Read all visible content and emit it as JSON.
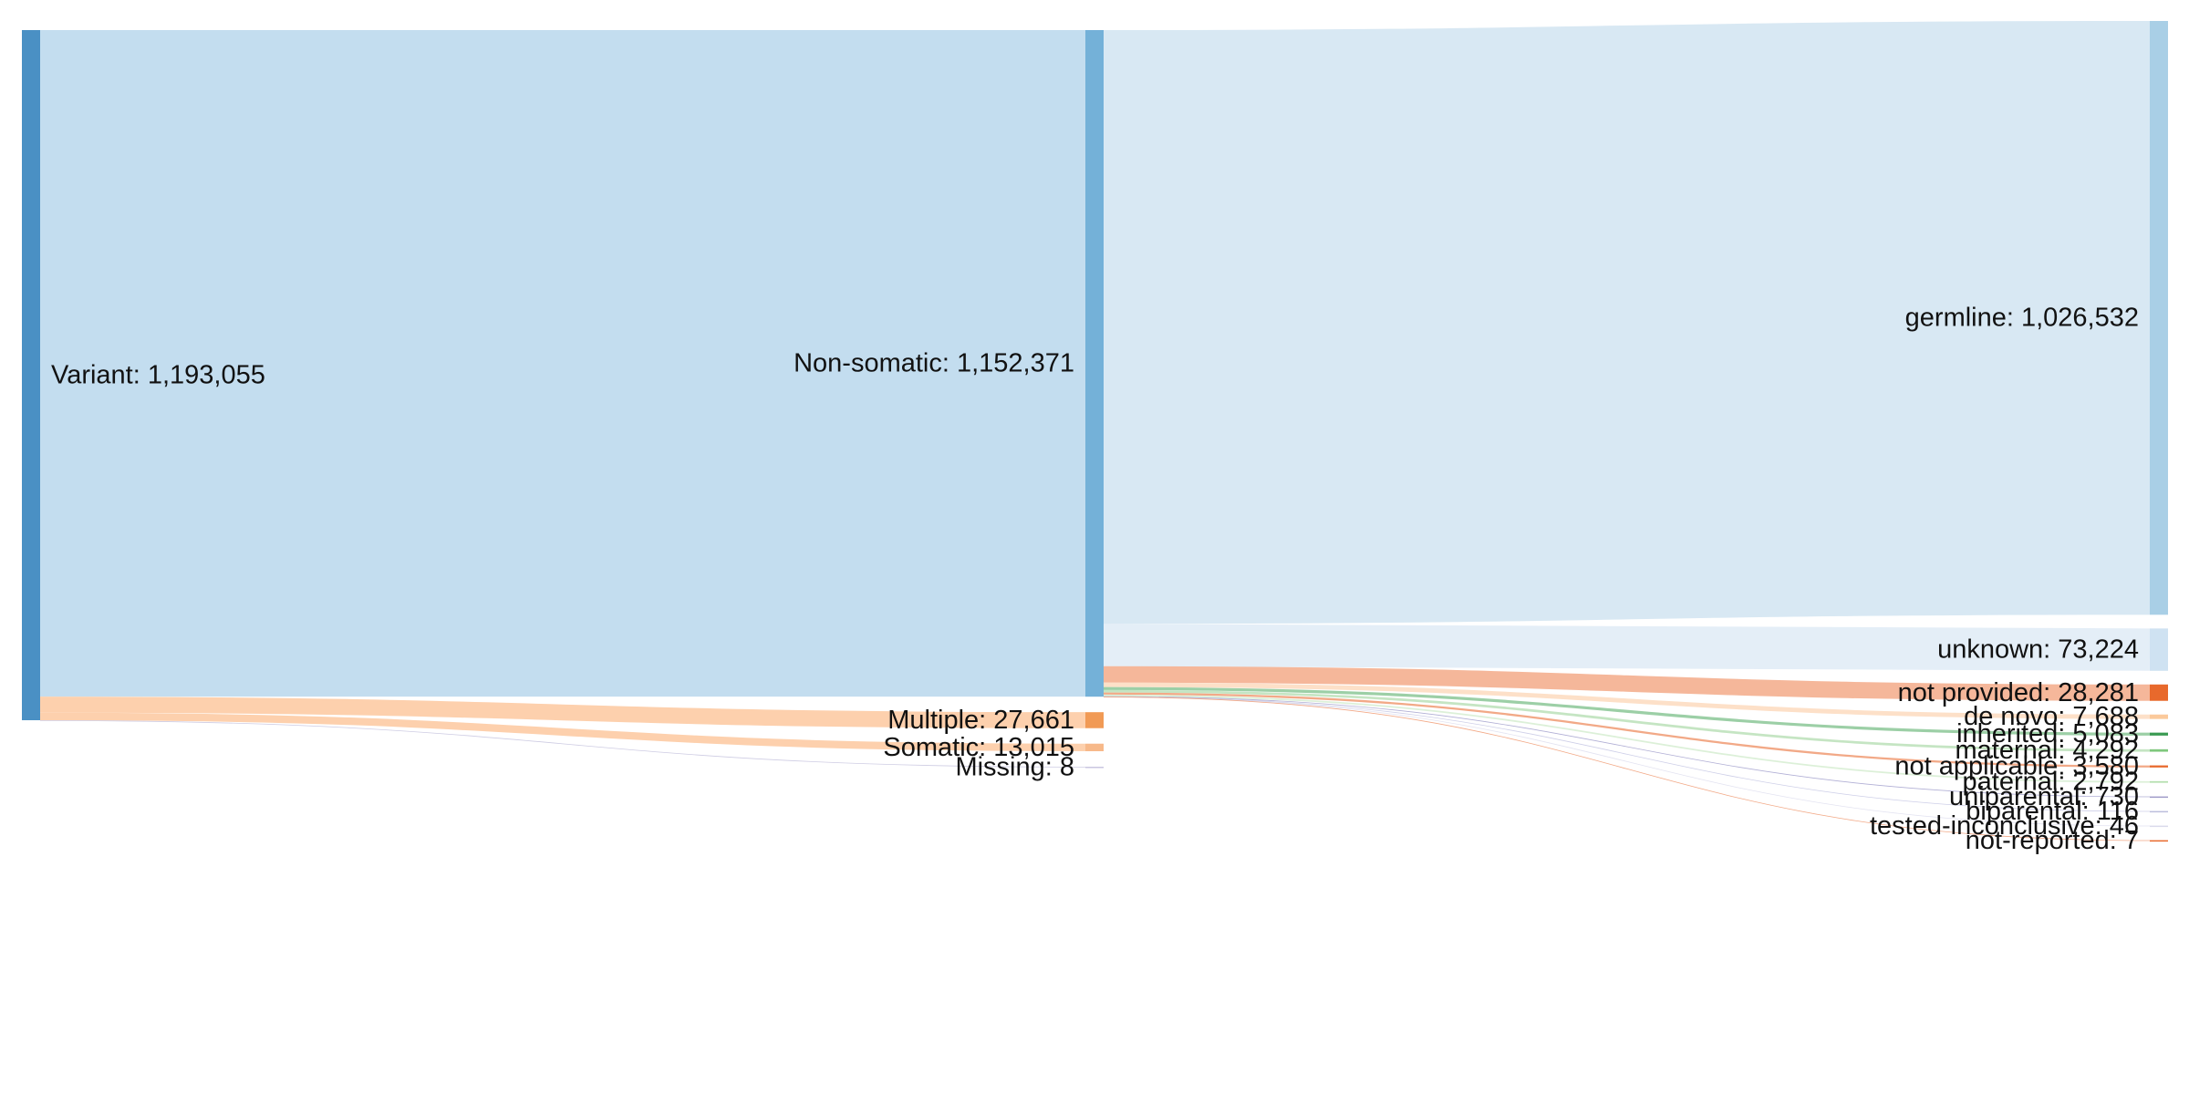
{
  "chart_data": {
    "type": "sankey",
    "title": "",
    "columns": [
      {
        "nodes": [
          {
            "id": "variant",
            "name": "Variant",
            "value": 1193055,
            "label": "Variant: 1,193,055",
            "color": "#4a90c4"
          }
        ]
      },
      {
        "nodes": [
          {
            "id": "nonsomatic",
            "name": "Non-somatic",
            "value": 1152371,
            "label": "Non-somatic: 1,152,371",
            "color": "#74b1d8"
          },
          {
            "id": "multiple",
            "name": "Multiple",
            "value": 27661,
            "label": "Multiple: 27,661",
            "color": "#f19a55"
          },
          {
            "id": "somatic",
            "name": "Somatic",
            "value": 13015,
            "label": "Somatic: 13,015",
            "color": "#f7b98a"
          },
          {
            "id": "missing",
            "name": "Missing",
            "value": 8,
            "label": "Missing: 8",
            "color": "#c9c6e0"
          }
        ]
      },
      {
        "nodes": [
          {
            "id": "germline",
            "name": "germline",
            "value": 1026532,
            "label": "germline: 1,026,532",
            "color": "#a9cfe6"
          },
          {
            "id": "unknown",
            "name": "unknown",
            "value": 73224,
            "label": "unknown: 73,224",
            "color": "#cfe2f2"
          },
          {
            "id": "notprovided",
            "name": "not provided",
            "value": 28281,
            "label": "not provided: 28,281",
            "color": "#e8692c"
          },
          {
            "id": "denovo",
            "name": "de novo",
            "value": 7688,
            "label": "de novo: 7,688",
            "color": "#fbc99b"
          },
          {
            "id": "inherited",
            "name": "inherited",
            "value": 5083,
            "label": "inherited: 5,083",
            "color": "#3a9a52"
          },
          {
            "id": "maternal",
            "name": "maternal",
            "value": 4292,
            "label": "maternal: 4,292",
            "color": "#7fc87d"
          },
          {
            "id": "notapplicable",
            "name": "not applicable",
            "value": 3580,
            "label": "not applicable: 3,580",
            "color": "#e8692c"
          },
          {
            "id": "paternal",
            "name": "paternal",
            "value": 2792,
            "label": "paternal: 2,792",
            "color": "#b4dfae"
          },
          {
            "id": "uniparental",
            "name": "uniparental",
            "value": 730,
            "label": "uniparental: 730",
            "color": "#9e9ac8"
          },
          {
            "id": "biparental",
            "name": "biparental",
            "value": 116,
            "label": "biparental: 116",
            "color": "#bcbddc"
          },
          {
            "id": "testedinconclusive",
            "name": "tested-inconclusive",
            "value": 46,
            "label": "tested-inconclusive: 46",
            "color": "#dadaeb"
          },
          {
            "id": "notreported",
            "name": "not-reported",
            "value": 7,
            "label": "not-reported: 7",
            "color": "#e8692c"
          }
        ]
      }
    ],
    "links": [
      {
        "source": "variant",
        "target": "nonsomatic",
        "value": 1152371,
        "color": "#c3ddef"
      },
      {
        "source": "variant",
        "target": "multiple",
        "value": 27661,
        "color": "#fdd0ad"
      },
      {
        "source": "variant",
        "target": "somatic",
        "value": 13015,
        "color": "#fdd0ad"
      },
      {
        "source": "variant",
        "target": "missing",
        "value": 8,
        "color": "#c9c6e0"
      },
      {
        "source": "nonsomatic",
        "target": "germline",
        "value": 1026532,
        "color": "#d8e8f3"
      },
      {
        "source": "nonsomatic",
        "target": "unknown",
        "value": 73224,
        "color": "#e4eef7"
      },
      {
        "source": "nonsomatic",
        "target": "notprovided",
        "value": 28281,
        "color": "#f5b79a"
      },
      {
        "source": "nonsomatic",
        "target": "denovo",
        "value": 7688,
        "color": "#fde0c8"
      },
      {
        "source": "nonsomatic",
        "target": "inherited",
        "value": 5083,
        "color": "#9ccfa6"
      },
      {
        "source": "nonsomatic",
        "target": "maternal",
        "value": 4292,
        "color": "#bfe2bd"
      },
      {
        "source": "nonsomatic",
        "target": "notapplicable",
        "value": 3580,
        "color": "#f1a07a"
      },
      {
        "source": "nonsomatic",
        "target": "paternal",
        "value": 2792,
        "color": "#d8eed4"
      },
      {
        "source": "nonsomatic",
        "target": "uniparental",
        "value": 730,
        "color": "#a9a6d0"
      },
      {
        "source": "nonsomatic",
        "target": "biparental",
        "value": 116,
        "color": "#c9cae6"
      },
      {
        "source": "nonsomatic",
        "target": "testedinconclusive",
        "value": 46,
        "color": "#e0e0ef"
      },
      {
        "source": "nonsomatic",
        "target": "notreported",
        "value": 7,
        "color": "#f1a07a"
      }
    ]
  }
}
